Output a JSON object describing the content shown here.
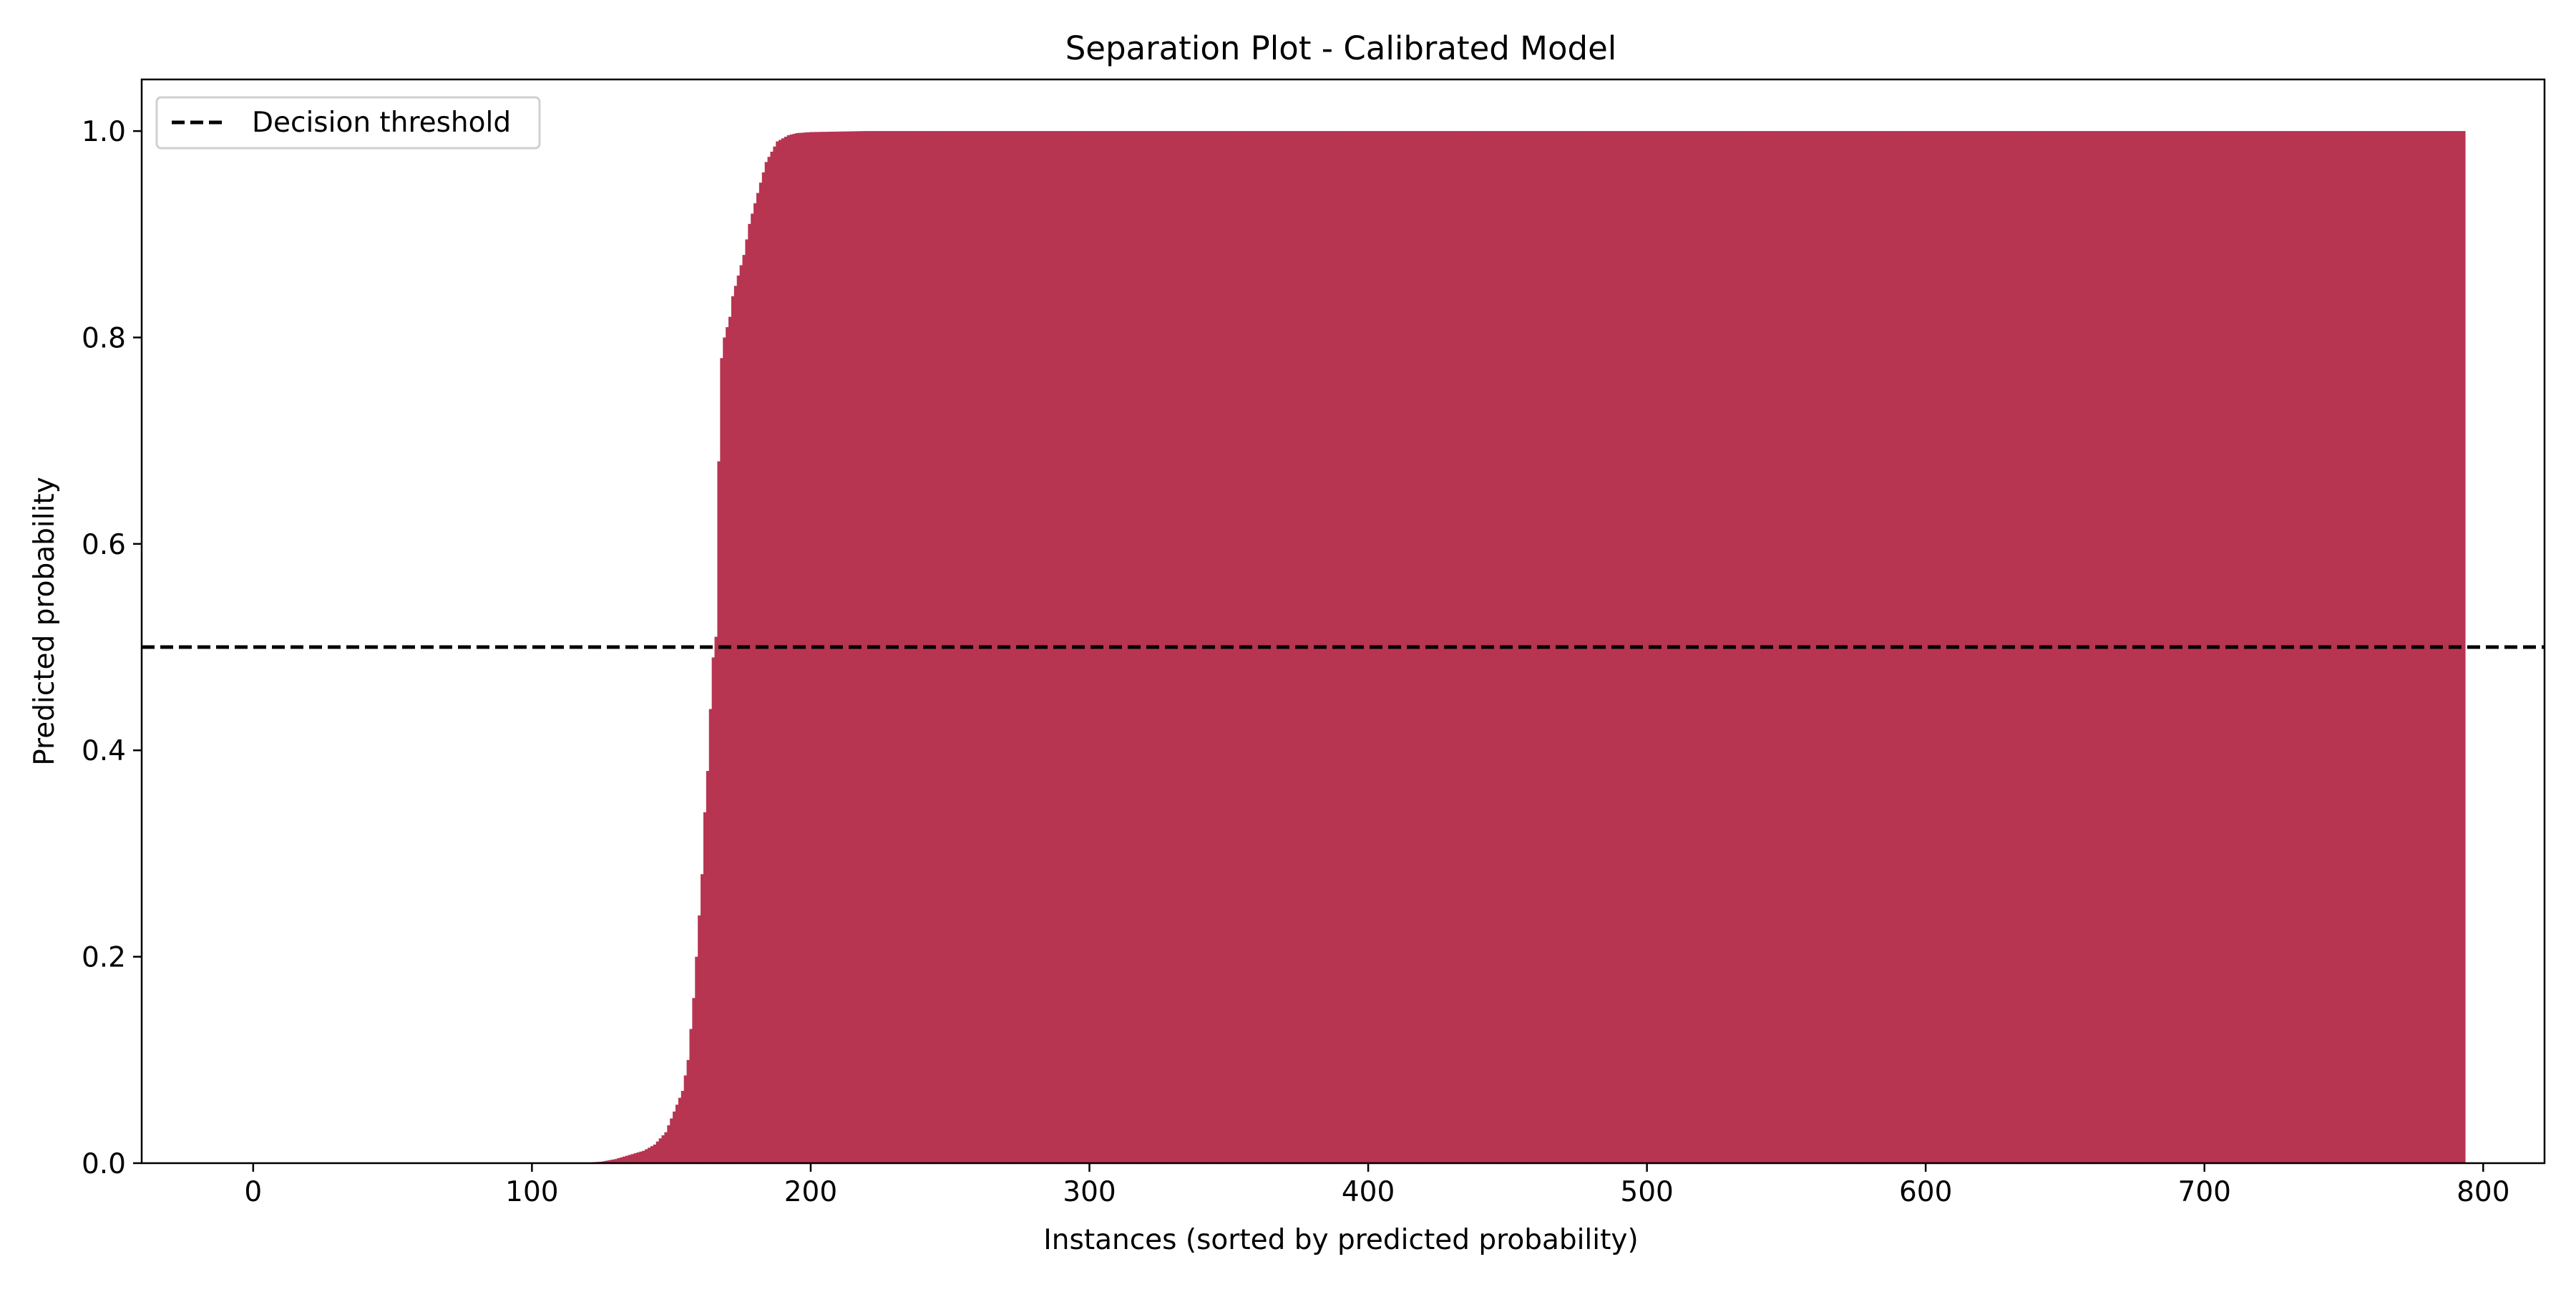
{
  "chart_data": {
    "type": "bar",
    "title": "Separation Plot - Calibrated Model",
    "xlabel": "Instances (sorted by predicted probability)",
    "ylabel": "Predicted probability",
    "xlim": [
      -40,
      822
    ],
    "ylim": [
      0.0,
      1.05
    ],
    "xticks": [
      0,
      100,
      200,
      300,
      400,
      500,
      600,
      700,
      800
    ],
    "xtick_labels": [
      "0",
      "100",
      "200",
      "300",
      "400",
      "500",
      "600",
      "700",
      "800"
    ],
    "yticks": [
      0.0,
      0.2,
      0.4,
      0.6,
      0.8,
      1.0
    ],
    "ytick_labels": [
      "0.0",
      "0.2",
      "0.4",
      "0.6",
      "0.8",
      "1.0"
    ],
    "grid": false,
    "legend_position": "upper left",
    "n_instances": 794,
    "bar_color": "#b73551",
    "series": [
      {
        "name": "Predicted probability",
        "x_start": 0,
        "x_end": 793,
        "profile_x": [
          0,
          100,
          120,
          125,
          130,
          135,
          140,
          144,
          148,
          151,
          154,
          156,
          158,
          159,
          160,
          161,
          162,
          163,
          164,
          165,
          166,
          167,
          168,
          169,
          170,
          171,
          172,
          174,
          176,
          178,
          180,
          182,
          184,
          186,
          188,
          190,
          192,
          195,
          200,
          210,
          220,
          240,
          793
        ],
        "profile_y": [
          0.0,
          0.0,
          0.0005,
          0.0015,
          0.004,
          0.008,
          0.012,
          0.018,
          0.03,
          0.05,
          0.07,
          0.1,
          0.16,
          0.2,
          0.24,
          0.28,
          0.34,
          0.38,
          0.44,
          0.49,
          0.51,
          0.68,
          0.78,
          0.8,
          0.81,
          0.82,
          0.84,
          0.86,
          0.88,
          0.91,
          0.93,
          0.95,
          0.97,
          0.98,
          0.99,
          0.993,
          0.996,
          0.998,
          0.999,
          0.9995,
          1.0,
          1.0,
          1.0
        ]
      }
    ],
    "reference_lines": [
      {
        "name": "Decision threshold",
        "y": 0.5,
        "style": "dashed",
        "color": "#000000"
      }
    ],
    "legend": [
      {
        "label": "Decision threshold",
        "style": "dashed",
        "color": "#000000"
      }
    ]
  }
}
